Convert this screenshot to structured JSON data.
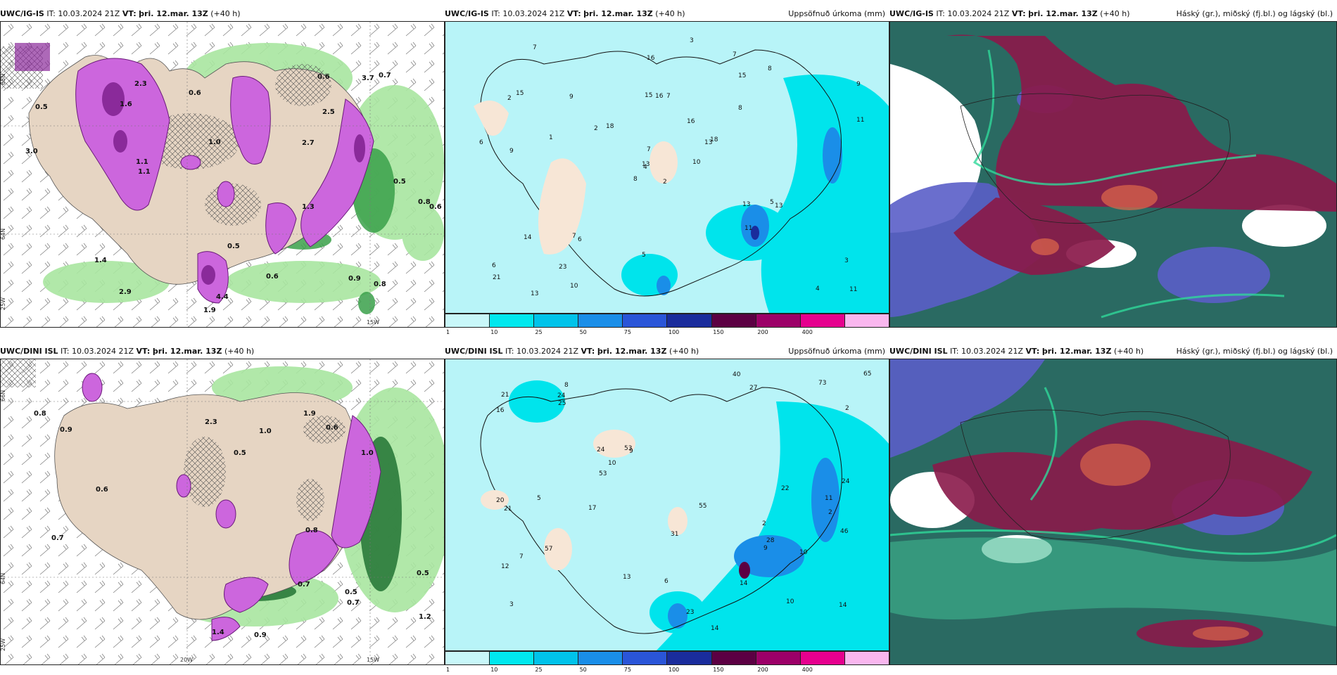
{
  "panels": [
    {
      "model": "UWC/IG-IS",
      "it": "IT: 10.03.2024 21Z",
      "vt_label": "VT:",
      "vt": "þri. 12.mar. 13Z",
      "lead": "(+40 h)",
      "right": ""
    },
    {
      "model": "UWC/IG-IS",
      "it": "IT: 10.03.2024 21Z",
      "vt_label": "VT:",
      "vt": "þri. 12.mar. 13Z",
      "lead": "(+40 h)",
      "right": "Uppsöfnuð úrkoma (mm)"
    },
    {
      "model": "UWC/IG-IS",
      "it": "IT: 10.03.2024 21Z",
      "vt_label": "VT:",
      "vt": "þri. 12.mar. 13Z",
      "lead": "(+40 h)",
      "right": "Háský (gr.), miðský (fj.bl.) og lágský (bl.)"
    },
    {
      "model": "UWC/DINI ISL",
      "it": "IT: 10.03.2024 21Z",
      "vt_label": "VT:",
      "vt": "þri. 12.mar. 13Z",
      "lead": "(+40 h)",
      "right": ""
    },
    {
      "model": "UWC/DINI ISL",
      "it": "IT: 10.03.2024 21Z",
      "vt_label": "VT:",
      "vt": "þri. 12.mar. 13Z",
      "lead": "(+40 h)",
      "right": "Uppsöfnuð úrkoma (mm)"
    },
    {
      "model": "UWC/DINI ISL",
      "it": "IT: 10.03.2024 21Z",
      "vt_label": "VT:",
      "vt": "þri. 12.mar. 13Z",
      "lead": "(+40 h)",
      "right": "Háský (gr.), miðský (fj.bl.) og lágský (bl.)"
    }
  ],
  "colorbar": {
    "colors": [
      "#c8f7f9",
      "#00e8ee",
      "#00c3ea",
      "#1a8ee8",
      "#2a55d8",
      "#1a2c9c",
      "#5c0043",
      "#9c0068",
      "#e6008e",
      "#f9b6ee"
    ],
    "ticks": [
      "1",
      "10",
      "25",
      "50",
      "75",
      "100",
      "150",
      "200",
      "400"
    ]
  },
  "axes": {
    "lat_top": [
      "65N",
      "64N",
      "25W"
    ],
    "lat_bot": [
      "66N",
      "64N",
      "25W"
    ],
    "lon_top": [
      "15W"
    ],
    "lon_bot": [
      "20W",
      "15W"
    ]
  },
  "precip_top_values": [
    "2",
    "2",
    "4",
    "6",
    "13",
    "6",
    "7",
    "7",
    "15",
    "10",
    "7",
    "11",
    "9",
    "9",
    "8",
    "8",
    "13",
    "15",
    "16",
    "14",
    "18",
    "21",
    "23",
    "16",
    "18",
    "13",
    "15",
    "16",
    "6",
    "13",
    "11",
    "13",
    "5",
    "7",
    "9",
    "8",
    "7",
    "4",
    "3",
    "5",
    "3",
    "2",
    "1",
    "11",
    "10"
  ],
  "precip_bot_values": [
    "2",
    "2",
    "3",
    "8",
    "9",
    "10",
    "12",
    "27",
    "24",
    "14",
    "16",
    "20",
    "21",
    "14",
    "13",
    "24",
    "31",
    "55",
    "53",
    "57",
    "65",
    "73",
    "53",
    "46",
    "40",
    "24",
    "28",
    "21",
    "25",
    "22",
    "23",
    "14",
    "10",
    "17",
    "11",
    "10",
    "9",
    "5",
    "6",
    "7",
    "2"
  ],
  "snow_top_values": [
    "0.5",
    "1.6",
    "2.7",
    "4.4",
    "3.7",
    "1.9",
    "1.3",
    "1.1",
    "0.7",
    "0.6",
    "0.8",
    "2.3",
    "2.5",
    "1.4",
    "3.0",
    "2.9",
    "1.1",
    "0.6",
    "0.8",
    "0.6",
    "0.9",
    "0.5",
    "1.0",
    "0.5",
    "0.6"
  ],
  "snow_bot_values": [
    "0.5",
    "0.7",
    "0.8",
    "1.0",
    "1.4",
    "2.3",
    "0.9",
    "1.9",
    "0.6",
    "0.7",
    "0.5",
    "1.0",
    "0.8",
    "0.9",
    "1.2",
    "0.6",
    "0.5",
    "0.7"
  ]
}
